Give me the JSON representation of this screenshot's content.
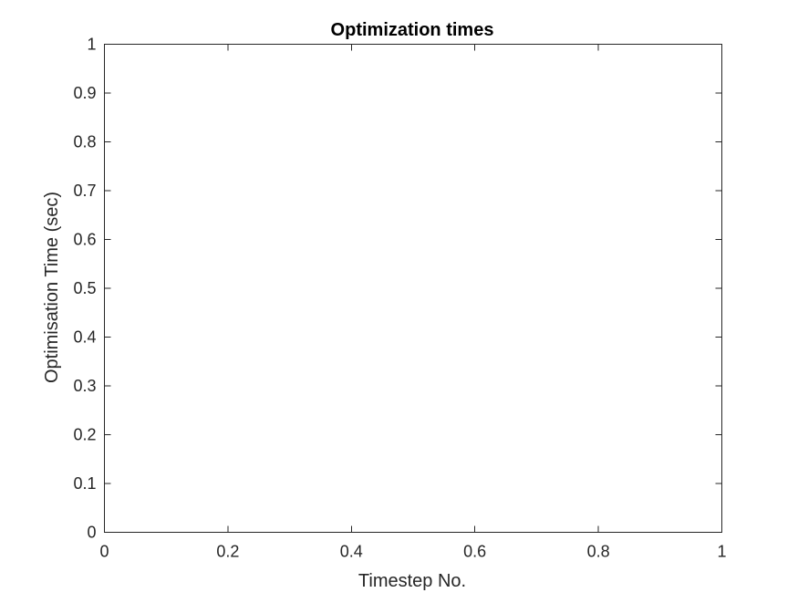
{
  "chart_data": {
    "type": "line",
    "title": "Optimization times",
    "xlabel": "Timestep No.",
    "ylabel": "Optimisation Time (sec)",
    "xlim": [
      0,
      1
    ],
    "ylim": [
      0,
      1
    ],
    "x_ticks": [
      0,
      0.2,
      0.4,
      0.6,
      0.8,
      1
    ],
    "x_tick_labels": [
      "0",
      "0.2",
      "0.4",
      "0.6",
      "0.8",
      "1"
    ],
    "y_ticks": [
      0,
      0.1,
      0.2,
      0.3,
      0.4,
      0.5,
      0.6,
      0.7,
      0.8,
      0.9,
      1
    ],
    "y_tick_labels": [
      "0",
      "0.1",
      "0.2",
      "0.3",
      "0.4",
      "0.5",
      "0.6",
      "0.7",
      "0.8",
      "0.9",
      "1"
    ],
    "grid": false,
    "series": [],
    "colors": {
      "axes": "#262626",
      "title": "#000000",
      "background": "#ffffff"
    }
  }
}
